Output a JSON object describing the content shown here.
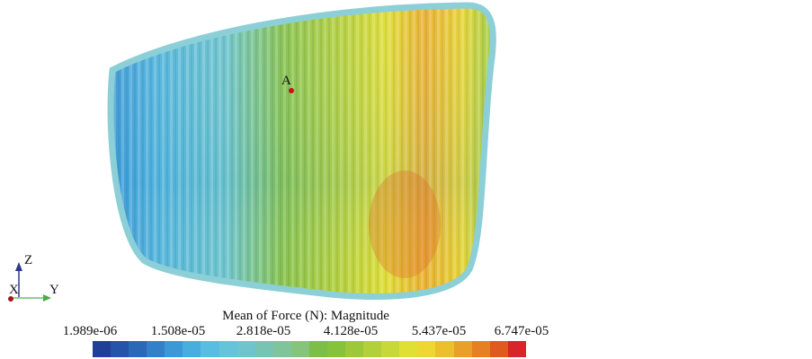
{
  "colorbar": {
    "title": "Mean of Force (N): Magnitude",
    "ticks": [
      "1.989e-06",
      "1.508e-05",
      "2.818e-05",
      "4.128e-05",
      "5.437e-05",
      "6.747e-05"
    ],
    "range": [
      1.989e-06,
      6.747e-05
    ],
    "colors": [
      "#1f3f98",
      "#2553a8",
      "#2c68b8",
      "#3380c8",
      "#3c98d6",
      "#48aee0",
      "#58bde0",
      "#66c4da",
      "#6ec5cc",
      "#78c4b4",
      "#7fc49a",
      "#86c47c",
      "#7cbe48",
      "#86c23c",
      "#9cc83a",
      "#b2d03a",
      "#c8d83a",
      "#e0e034",
      "#ecd830",
      "#ecc02c",
      "#e8a028",
      "#e68024",
      "#e05a20",
      "#d8242a"
    ]
  },
  "axes": {
    "z": "Z",
    "x": "X",
    "y": "Y"
  },
  "point": {
    "label": "A"
  }
}
